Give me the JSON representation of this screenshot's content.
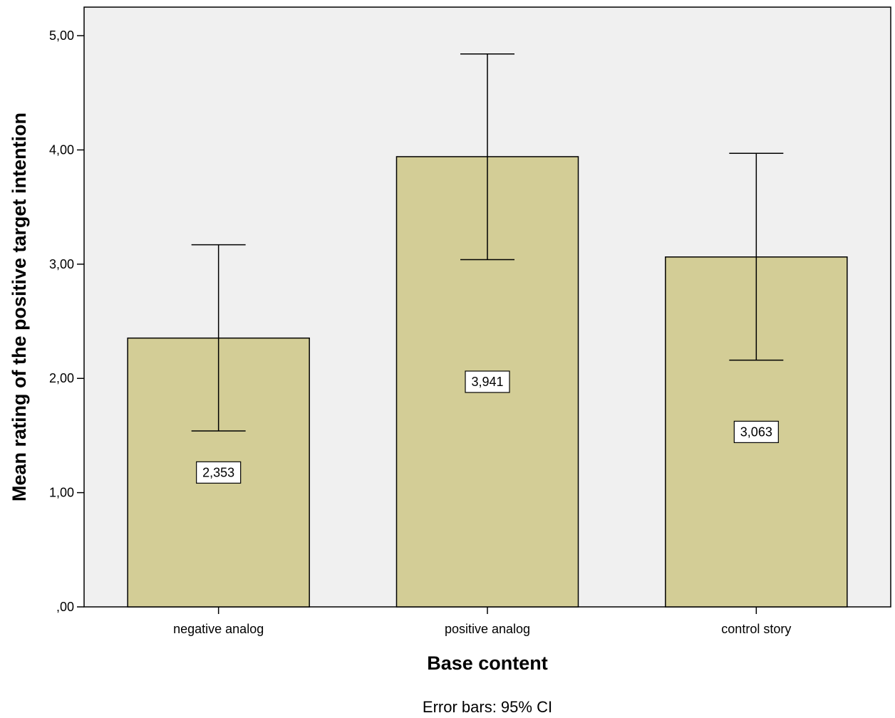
{
  "chart_data": {
    "type": "bar",
    "title": "",
    "xlabel": "Base content",
    "ylabel": "Mean rating of the positive target intention",
    "footnote": "Error bars: 95% CI",
    "categories": [
      "negative analog",
      "positive analog",
      "control story"
    ],
    "values": [
      2.353,
      3.941,
      3.063
    ],
    "value_labels": [
      "2,353",
      "3,941",
      "3,063"
    ],
    "error_bars": {
      "type": "95% CI",
      "lower": [
        1.54,
        3.04,
        2.16
      ],
      "upper": [
        3.17,
        4.84,
        3.97
      ]
    },
    "ylim": [
      0,
      5.25
    ],
    "yticks": [
      0,
      1,
      2,
      3,
      4,
      5
    ],
    "ytick_labels": [
      ",00",
      "1,00",
      "2,00",
      "3,00",
      "4,00",
      "5,00"
    ],
    "grid": false,
    "colors": {
      "bar_fill": "#d3cd96",
      "plot_background": "#f0f0f0",
      "stroke": "#000000"
    }
  }
}
